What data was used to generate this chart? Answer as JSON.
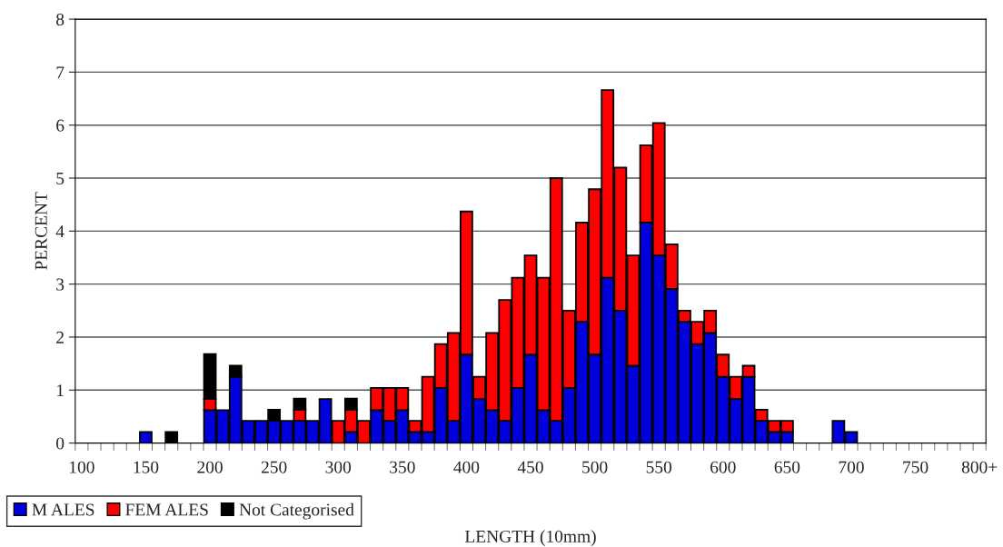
{
  "chart_data": {
    "type": "bar",
    "stacked": true,
    "xlabel": "LENGTH (10mm)",
    "ylabel": "PERCENT",
    "categories": [
      "100",
      null,
      null,
      null,
      null,
      "150",
      null,
      null,
      null,
      null,
      "200",
      null,
      null,
      null,
      null,
      "250",
      null,
      null,
      null,
      null,
      "300",
      null,
      null,
      null,
      null,
      "350",
      null,
      null,
      null,
      null,
      "400",
      null,
      null,
      null,
      null,
      "450",
      null,
      null,
      null,
      null,
      "500",
      null,
      null,
      null,
      null,
      "550",
      null,
      null,
      null,
      null,
      "600",
      null,
      null,
      null,
      null,
      "650",
      null,
      null,
      null,
      null,
      "700",
      null,
      null,
      null,
      null,
      "750",
      null,
      null,
      null,
      null,
      "800+"
    ],
    "series": [
      {
        "name": "M ALES",
        "color": "#0000dd",
        "values": [
          0,
          0,
          0,
          0,
          0,
          0.21,
          0,
          0,
          0,
          0,
          0.62,
          0.62,
          1.25,
          0.42,
          0.42,
          0.42,
          0.42,
          0.42,
          0.42,
          0.83,
          0,
          0.21,
          0,
          0.62,
          0.42,
          0.62,
          0.21,
          0.21,
          1.04,
          0.42,
          1.67,
          0.83,
          0.62,
          0.42,
          1.04,
          1.67,
          0.62,
          0.42,
          1.04,
          2.29,
          1.67,
          3.12,
          2.5,
          1.46,
          4.16,
          3.54,
          2.91,
          2.29,
          1.87,
          2.08,
          1.25,
          0.83,
          1.25,
          0.42,
          0.21,
          0.21,
          0,
          0,
          0,
          0.42,
          0.21,
          0,
          0,
          0,
          0,
          0,
          0,
          0,
          0,
          0,
          0
        ]
      },
      {
        "name": "FEM ALES",
        "color": "#ff0000",
        "values": [
          0,
          0,
          0,
          0,
          0,
          0,
          0,
          0,
          0,
          0,
          0.21,
          0,
          0,
          0,
          0,
          0,
          0,
          0.21,
          0,
          0,
          0.42,
          0.42,
          0.42,
          0.42,
          0.62,
          0.42,
          0.21,
          1.04,
          0.83,
          1.66,
          2.7,
          0.42,
          1.46,
          2.28,
          2.08,
          1.87,
          2.5,
          4.58,
          1.46,
          1.87,
          3.12,
          3.54,
          2.7,
          2.08,
          1.46,
          2.5,
          0.84,
          0.21,
          0.42,
          0.42,
          0.42,
          0.42,
          0.21,
          0.21,
          0.21,
          0.21,
          0,
          0,
          0,
          0,
          0,
          0,
          0,
          0,
          0,
          0,
          0,
          0,
          0,
          0,
          0
        ]
      },
      {
        "name": "Not Categorised",
        "color": "#000000",
        "values": [
          0,
          0,
          0,
          0,
          0,
          0,
          0,
          0.21,
          0,
          0,
          0.85,
          0,
          0.21,
          0,
          0,
          0.21,
          0,
          0.21,
          0,
          0,
          0,
          0.21,
          0,
          0,
          0,
          0,
          0,
          0,
          0,
          0,
          0,
          0,
          0,
          0,
          0,
          0,
          0,
          0,
          0,
          0,
          0,
          0,
          0,
          0,
          0,
          0,
          0,
          0,
          0,
          0,
          0,
          0,
          0,
          0,
          0,
          0,
          0,
          0,
          0,
          0,
          0,
          0,
          0,
          0,
          0,
          0,
          0,
          0,
          0,
          0,
          0
        ]
      }
    ],
    "ylim": [
      0,
      8
    ],
    "yticks": [
      0,
      1,
      2,
      3,
      4,
      5,
      6,
      7,
      8
    ],
    "grid": "y",
    "legend": "bottom left"
  }
}
